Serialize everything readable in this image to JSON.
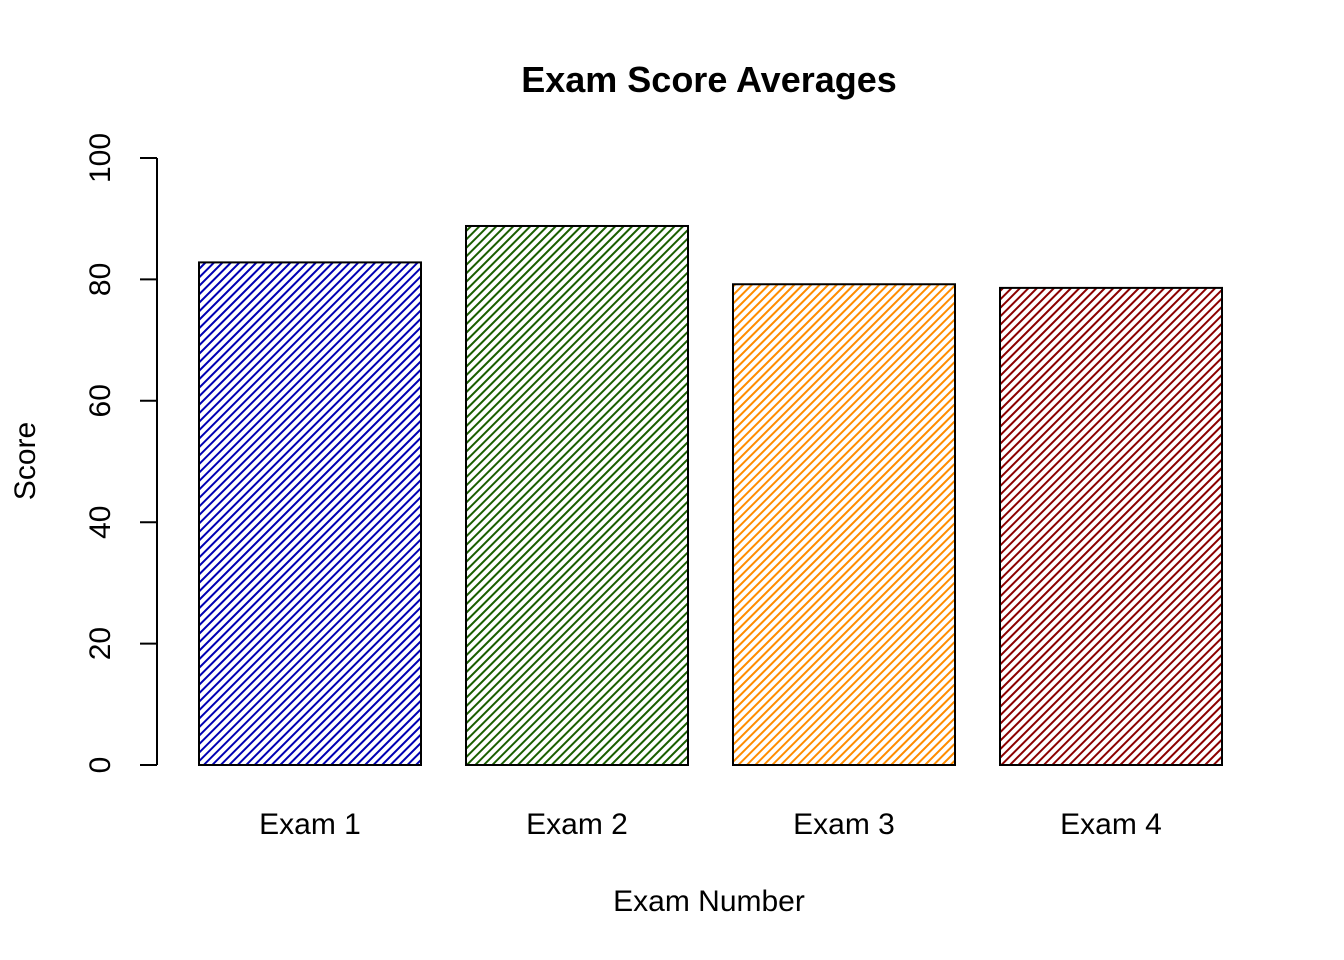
{
  "chart_data": {
    "type": "bar",
    "title": "Exam Score Averages",
    "xlabel": "Exam Number",
    "ylabel": "Score",
    "ylim": [
      0,
      100
    ],
    "yticks": [
      0,
      20,
      40,
      60,
      80,
      100
    ],
    "grid": false,
    "legend": "none",
    "fill": "diagonal-hatch",
    "categories": [
      "Exam 1",
      "Exam 2",
      "Exam 3",
      "Exam 4"
    ],
    "values": [
      82.8,
      88.8,
      79.2,
      78.6
    ],
    "colors": [
      "#0000b3",
      "#1a5e00",
      "#ff8c00",
      "#8b0000"
    ]
  }
}
